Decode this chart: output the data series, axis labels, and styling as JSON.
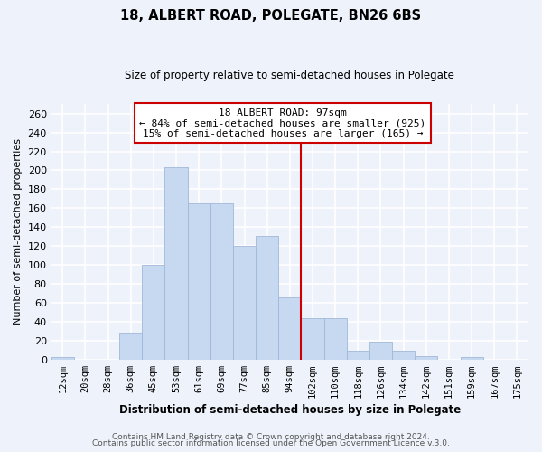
{
  "title": "18, ALBERT ROAD, POLEGATE, BN26 6BS",
  "subtitle": "Size of property relative to semi-detached houses in Polegate",
  "xlabel": "Distribution of semi-detached houses by size in Polegate",
  "ylabel": "Number of semi-detached properties",
  "bar_labels": [
    "12sqm",
    "20sqm",
    "28sqm",
    "36sqm",
    "45sqm",
    "53sqm",
    "61sqm",
    "69sqm",
    "77sqm",
    "85sqm",
    "94sqm",
    "102sqm",
    "110sqm",
    "118sqm",
    "126sqm",
    "134sqm",
    "142sqm",
    "151sqm",
    "159sqm",
    "167sqm",
    "175sqm"
  ],
  "bar_values": [
    3,
    0,
    0,
    28,
    100,
    203,
    165,
    165,
    120,
    131,
    66,
    44,
    44,
    9,
    19,
    9,
    4,
    0,
    3,
    0,
    0
  ],
  "bar_color": "#c6d9f0",
  "bar_edge_color": "#a0b8d8",
  "ylim": [
    0,
    270
  ],
  "yticks": [
    0,
    20,
    40,
    60,
    80,
    100,
    120,
    140,
    160,
    180,
    200,
    220,
    240,
    260
  ],
  "property_label": "18 ALBERT ROAD: 97sqm",
  "annotation_line1": "← 84% of semi-detached houses are smaller (925)",
  "annotation_line2": "15% of semi-detached houses are larger (165) →",
  "vline_color": "#cc0000",
  "vline_x_index": 10.5,
  "footer1": "Contains HM Land Registry data © Crown copyright and database right 2024.",
  "footer2": "Contains public sector information licensed under the Open Government Licence v.3.0.",
  "background_color": "#eef3fb",
  "grid_color": "#ffffff",
  "title_fontsize": 10.5,
  "subtitle_fontsize": 8.5,
  "xlabel_fontsize": 8.5,
  "ylabel_fontsize": 8,
  "tick_fontsize": 7.5,
  "footer_fontsize": 6.5
}
